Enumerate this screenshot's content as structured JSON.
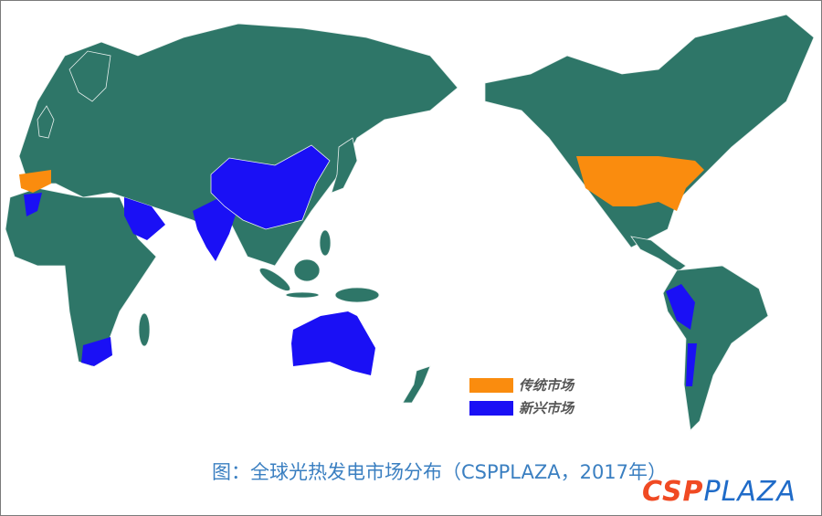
{
  "colors": {
    "land": "#2e7668",
    "traditional": "#fa8c0e",
    "emerging": "#1a10f5",
    "caption": "#3a7fc1"
  },
  "legend": [
    {
      "label": "传统市场",
      "color": "#fa8c0e"
    },
    {
      "label": "新兴市场",
      "color": "#1a10f5"
    }
  ],
  "map": {
    "traditional_markets": [
      "Spain",
      "United States"
    ],
    "emerging_markets": [
      "Morocco",
      "Saudi Arabia",
      "India",
      "China",
      "South Africa",
      "Australia",
      "Peru",
      "Chile"
    ]
  },
  "caption": "图：全球光热发电市场分布（CSPPLAZA，2017年）",
  "logo": {
    "part1": "CSP",
    "part2": "PLAZA"
  }
}
